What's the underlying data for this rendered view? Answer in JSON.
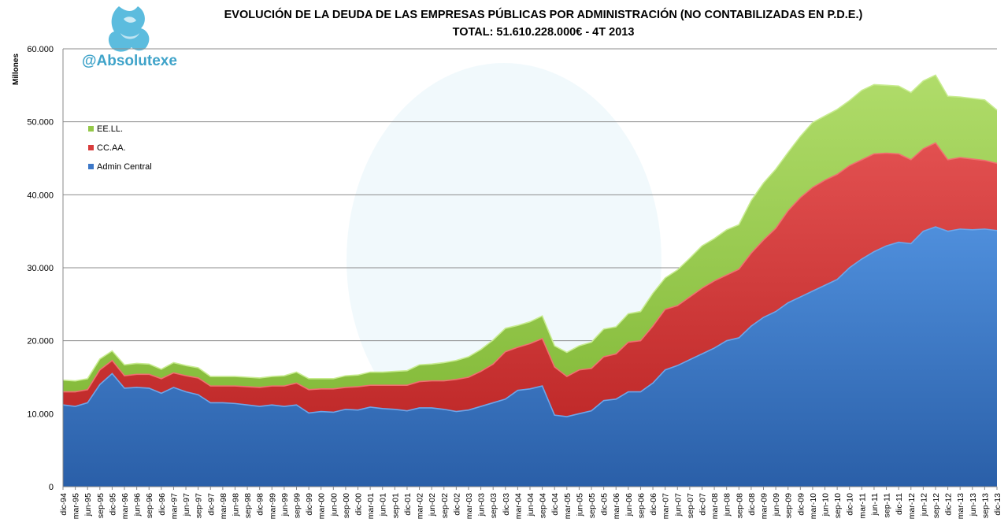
{
  "header": {
    "title_line1": "EVOLUCIÓN DE LA DEUDA DE LAS EMPRESAS PÚBLICAS POR ADMINISTRACIÓN (NO CONTABILIZADAS EN P.D.E.)",
    "title_line2": "TOTAL: 51.610.228.000€  - 4T 2013"
  },
  "watermark": {
    "handle": "@Absolutexe",
    "logo_icon": "griffin-logo-icon"
  },
  "colors": {
    "admin_central": "#3d78c8",
    "ccaa": "#d83c3c",
    "eell": "#94c848",
    "grid": "#8c8c8c"
  },
  "chart_data": {
    "type": "area",
    "stacked": true,
    "title": "EVOLUCIÓN DE LA DEUDA DE LAS EMPRESAS PÚBLICAS POR ADMINISTRACIÓN (NO CONTABILIZADAS EN P.D.E.)",
    "subtitle": "TOTAL: 51.610.228.000€  - 4T 2013",
    "ylabel": "Millones",
    "xlabel": "",
    "ylim": [
      0,
      60000
    ],
    "yticks": [
      0,
      10000,
      20000,
      30000,
      40000,
      50000,
      60000
    ],
    "ytick_labels": [
      "0",
      "10.000",
      "20.000",
      "30.000",
      "40.000",
      "50.000",
      "60.000"
    ],
    "grid": true,
    "legend_position": "top-left",
    "categories": [
      "dic-94",
      "mar-95",
      "jun-95",
      "sep-95",
      "dic-95",
      "mar-96",
      "jun-96",
      "sep-96",
      "dic-96",
      "mar-97",
      "jun-97",
      "sep-97",
      "dic-97",
      "mar-98",
      "jun-98",
      "sep-98",
      "dic-98",
      "mar-99",
      "jun-99",
      "sep-99",
      "dic-99",
      "mar-00",
      "jun-00",
      "sep-00",
      "dic-00",
      "mar-01",
      "jun-01",
      "sep-01",
      "dic-01",
      "mar-02",
      "jun-02",
      "sep-02",
      "dic-02",
      "mar-03",
      "jun-03",
      "sep-03",
      "dic-03",
      "mar-04",
      "jun-04",
      "sep-04",
      "dic-04",
      "mar-05",
      "jun-05",
      "sep-05",
      "dic-05",
      "mar-06",
      "jun-06",
      "sep-06",
      "dic-06",
      "mar-07",
      "jun-07",
      "sep-07",
      "dic-07",
      "mar-08",
      "jun-08",
      "sep-08",
      "dic-08",
      "mar-09",
      "jun-09",
      "sep-09",
      "dic-09",
      "mar-10",
      "jun-10",
      "sep-10",
      "dic-10",
      "mar-11",
      "jun-11",
      "sep-11",
      "dic-11",
      "mar-12",
      "jun-12",
      "sep-12",
      "dic-12",
      "mar-13",
      "jun-13",
      "sep-13",
      "dic-13"
    ],
    "series": [
      {
        "name": "Admin Central",
        "values": [
          11200,
          11000,
          11500,
          14000,
          15500,
          13500,
          13600,
          13500,
          12800,
          13600,
          13000,
          12600,
          11500,
          11500,
          11400,
          11200,
          11000,
          11200,
          11000,
          11200,
          10100,
          10300,
          10200,
          10600,
          10500,
          10900,
          10700,
          10600,
          10400,
          10800,
          10800,
          10600,
          10300,
          10500,
          11000,
          11500,
          12000,
          13200,
          13400,
          13800,
          9800,
          9600,
          10000,
          10400,
          11800,
          12000,
          13000,
          13000,
          14200,
          16000,
          16600,
          17400,
          18200,
          19000,
          20000,
          20400,
          22000,
          23200,
          24000,
          25200,
          26000,
          26800,
          27600,
          28400,
          30000,
          31200,
          32200,
          33000,
          33500,
          33300,
          35000,
          35600,
          35000,
          35300,
          35200,
          35300,
          35100
        ]
      },
      {
        "name": "CC.AA.",
        "values": [
          1800,
          2000,
          1800,
          2000,
          1800,
          1700,
          1800,
          1900,
          2000,
          2000,
          2200,
          2300,
          2300,
          2300,
          2400,
          2500,
          2600,
          2600,
          2800,
          3000,
          3200,
          3100,
          3200,
          3000,
          3200,
          3000,
          3200,
          3300,
          3500,
          3600,
          3700,
          3900,
          4400,
          4500,
          4800,
          5300,
          6500,
          5900,
          6200,
          6500,
          6600,
          5500,
          6000,
          5800,
          6000,
          6200,
          6800,
          7000,
          7800,
          8300,
          8200,
          8600,
          9000,
          9200,
          9000,
          9400,
          10000,
          10600,
          11400,
          12600,
          13600,
          14200,
          14400,
          14400,
          14000,
          13600,
          13400,
          12700,
          12100,
          11500,
          11300,
          11500,
          9800,
          9800,
          9700,
          9400,
          9200
        ]
      },
      {
        "name": "EE.LL.",
        "values": [
          1600,
          1500,
          1500,
          1500,
          1300,
          1500,
          1500,
          1400,
          1300,
          1400,
          1400,
          1400,
          1300,
          1300,
          1300,
          1300,
          1300,
          1300,
          1400,
          1500,
          1500,
          1400,
          1400,
          1600,
          1600,
          1800,
          1800,
          1900,
          2000,
          2300,
          2300,
          2500,
          2600,
          2800,
          3000,
          3300,
          3200,
          3000,
          3000,
          3100,
          2900,
          3300,
          3300,
          3600,
          3800,
          3700,
          3900,
          4000,
          4500,
          4300,
          4900,
          5300,
          5800,
          5800,
          6200,
          6100,
          7200,
          7800,
          8100,
          8000,
          8400,
          8900,
          8800,
          8900,
          8900,
          9500,
          9500,
          9300,
          9300,
          9200,
          9300,
          9300,
          8700,
          8300,
          8300,
          8300,
          7300
        ]
      }
    ]
  }
}
